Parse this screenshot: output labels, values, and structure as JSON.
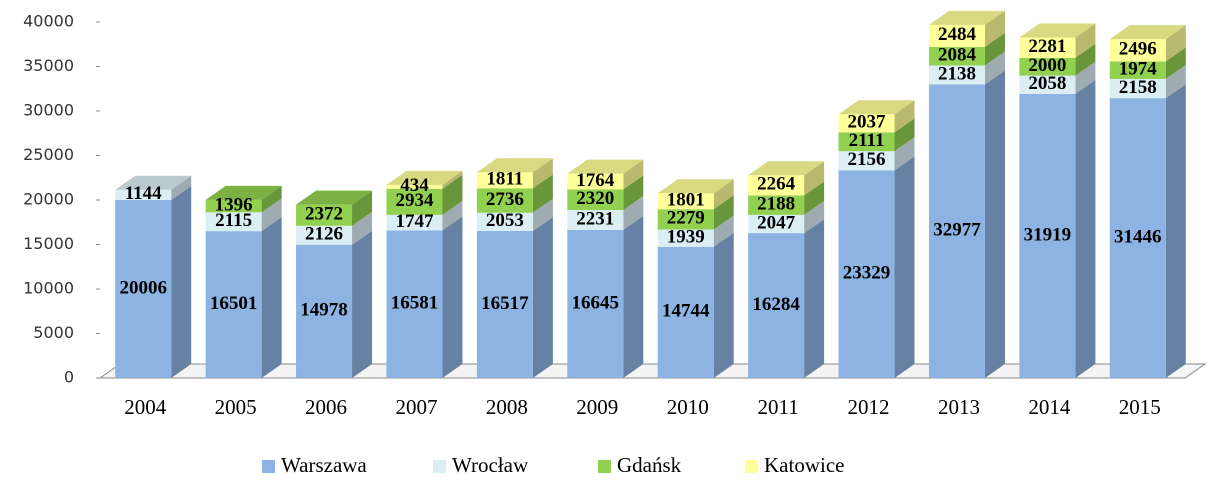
{
  "chart_data": {
    "type": "bar3d_stacked",
    "categories": [
      "2004",
      "2005",
      "2006",
      "2007",
      "2008",
      "2009",
      "2010",
      "2011",
      "2012",
      "2013",
      "2014",
      "2015"
    ],
    "series": [
      {
        "name": "Warszawa",
        "color": "#8db3e2",
        "values": [
          20006,
          16501,
          14978,
          16581,
          16517,
          16645,
          14744,
          16284,
          23329,
          32977,
          31919,
          31446
        ]
      },
      {
        "name": "Wrocław",
        "color": "#dbeef4",
        "values": [
          1144,
          2115,
          2126,
          1747,
          2053,
          2231,
          1939,
          2047,
          2156,
          2138,
          2058,
          2158
        ]
      },
      {
        "name": "Gdańsk",
        "color": "#92d050",
        "values": [
          null,
          1396,
          2372,
          2934,
          2736,
          2320,
          2279,
          2188,
          2111,
          2084,
          2000,
          1974
        ]
      },
      {
        "name": "Katowice",
        "color": "#ffff99",
        "values": [
          null,
          null,
          null,
          434,
          1811,
          1764,
          1801,
          2264,
          2037,
          2484,
          2281,
          2496
        ]
      }
    ],
    "ylim": [
      0,
      40000
    ],
    "yticks": [
      0,
      5000,
      10000,
      15000,
      20000,
      25000,
      30000,
      35000,
      40000
    ],
    "legend": "bottom"
  }
}
